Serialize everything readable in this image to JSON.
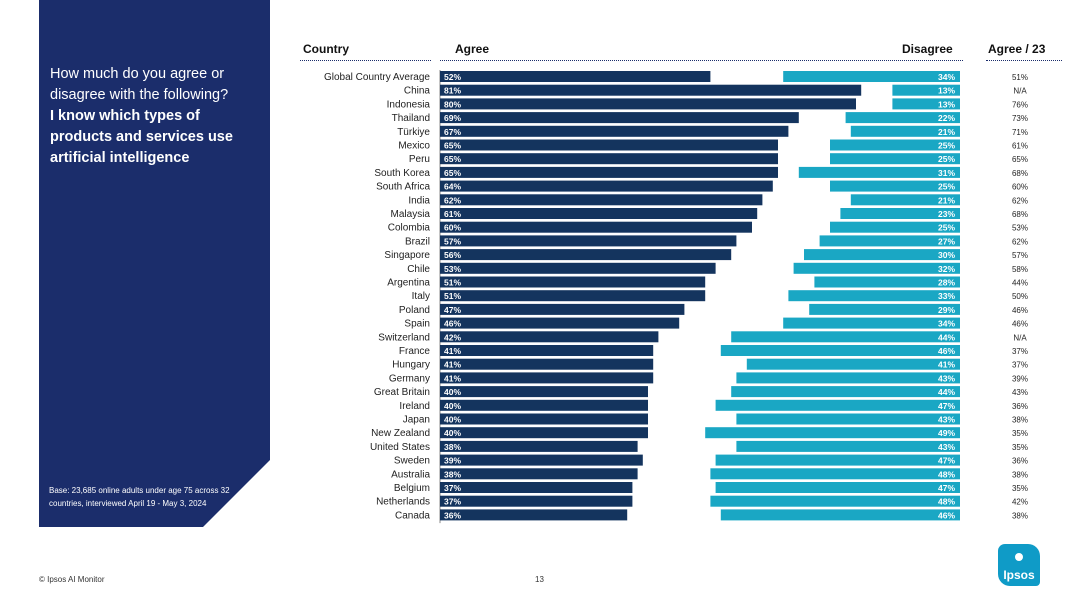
{
  "panel": {
    "question_line": "How much do you agree or disagree with the following?",
    "statement": "I know which types of products and services use artificial intelligence",
    "base_note": "Base: 23,685 online adults under age 75 across 32 countries, interviewed April 19 - May 3, 2024"
  },
  "headers": {
    "country": "Country",
    "agree": "Agree",
    "disagree": "Disagree",
    "agree23": "Agree / 23"
  },
  "footer": {
    "source": "© Ipsos AI Monitor",
    "page": "13",
    "logo_text": "Ipsos"
  },
  "colors": {
    "agree": "#14345e",
    "disagree": "#1aa7c4",
    "panel": "#1b2d6b"
  },
  "chart_data": {
    "type": "bar",
    "stacking": "diverging",
    "categories": [
      "Global Country Average",
      "China",
      "Indonesia",
      "Thailand",
      "Türkiye",
      "Mexico",
      "Peru",
      "South Korea",
      "South Africa",
      "India",
      "Malaysia",
      "Colombia",
      "Brazil",
      "Singapore",
      "Chile",
      "Argentina",
      "Italy",
      "Poland",
      "Spain",
      "Switzerland",
      "France",
      "Hungary",
      "Germany",
      "Great Britain",
      "Ireland",
      "Japan",
      "New Zealand",
      "United States",
      "Sweden",
      "Australia",
      "Belgium",
      "Netherlands",
      "Canada"
    ],
    "series": [
      {
        "name": "Agree",
        "values": [
          52,
          81,
          80,
          69,
          67,
          65,
          65,
          65,
          64,
          62,
          61,
          60,
          57,
          56,
          53,
          51,
          51,
          47,
          46,
          42,
          41,
          41,
          41,
          40,
          40,
          40,
          40,
          38,
          39,
          38,
          37,
          37,
          36
        ]
      },
      {
        "name": "Disagree",
        "values": [
          34,
          13,
          13,
          22,
          21,
          25,
          25,
          31,
          25,
          21,
          23,
          25,
          27,
          30,
          32,
          28,
          33,
          29,
          34,
          44,
          46,
          41,
          43,
          44,
          47,
          43,
          49,
          43,
          47,
          48,
          47,
          48,
          46
        ]
      }
    ],
    "agree_2023": [
      "51%",
      "N/A",
      "76%",
      "73%",
      "71%",
      "61%",
      "65%",
      "68%",
      "60%",
      "62%",
      "68%",
      "53%",
      "62%",
      "57%",
      "58%",
      "44%",
      "50%",
      "46%",
      "46%",
      "N/A",
      "37%",
      "37%",
      "39%",
      "43%",
      "36%",
      "38%",
      "35%",
      "35%",
      "36%",
      "38%",
      "35%",
      "42%",
      "38%"
    ],
    "value_suffix": "%"
  }
}
